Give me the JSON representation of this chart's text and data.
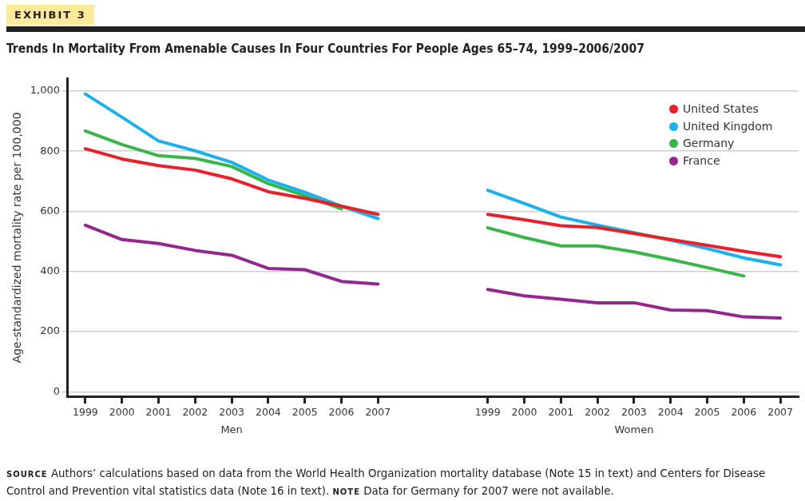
{
  "chart_data": {
    "type": "line",
    "title": "Trends In Mortality From Amenable Causes In Four Countries For People Ages 65–74, 1999–2006/2007",
    "ylabel": "Age-standardized mortality rate per 100,000",
    "categories": [
      "1999",
      "2000",
      "2001",
      "2002",
      "2003",
      "2004",
      "2005",
      "2006",
      "2007",
      null,
      null,
      "1999",
      "2000",
      "2001",
      "2002",
      "2003",
      "2004",
      "2005",
      "2006",
      "2007"
    ],
    "series": [
      {
        "name": "United States",
        "color": "#e8202a",
        "values": [
          808,
          774,
          752,
          737,
          708,
          665,
          643,
          617,
          590,
          null,
          null,
          590,
          572,
          552,
          546,
          526,
          506,
          487,
          467,
          449
        ]
      },
      {
        "name": "United Kingdom",
        "color": "#1cb0ec",
        "values": [
          990,
          913,
          834,
          801,
          763,
          704,
          663,
          617,
          576,
          null,
          null,
          670,
          626,
          581,
          554,
          529,
          504,
          476,
          445,
          422
        ]
      },
      {
        "name": "Germany",
        "color": "#3bb54a",
        "values": [
          867,
          822,
          785,
          776,
          749,
          692,
          652,
          608,
          null,
          null,
          null,
          545,
          513,
          485,
          485,
          465,
          440,
          413,
          385,
          null
        ]
      },
      {
        "name": "France",
        "color": "#93278f",
        "values": [
          554,
          506,
          493,
          470,
          454,
          410,
          406,
          367,
          358,
          null,
          null,
          340,
          319,
          308,
          296,
          296,
          272,
          270,
          249,
          245
        ]
      }
    ],
    "ylim": [
      -15,
      1040
    ],
    "yticks": [
      0,
      200,
      400,
      600,
      800,
      {
        "value": 1000,
        "label": "1,000"
      }
    ],
    "grid": "y",
    "legend": "top right",
    "marker": "none",
    "line_style": "solid",
    "annotations": [
      "EXHIBIT 3",
      "Men",
      "Women",
      "SOURCE Authors’ calculations based on data from the World Health Organization mortality database (Note 15 in text) and Centers for Disease Control and Prevention vital statistics data (Note 16 in text).",
      "NOTE Data for Germany for 2007 were not available."
    ]
  }
}
